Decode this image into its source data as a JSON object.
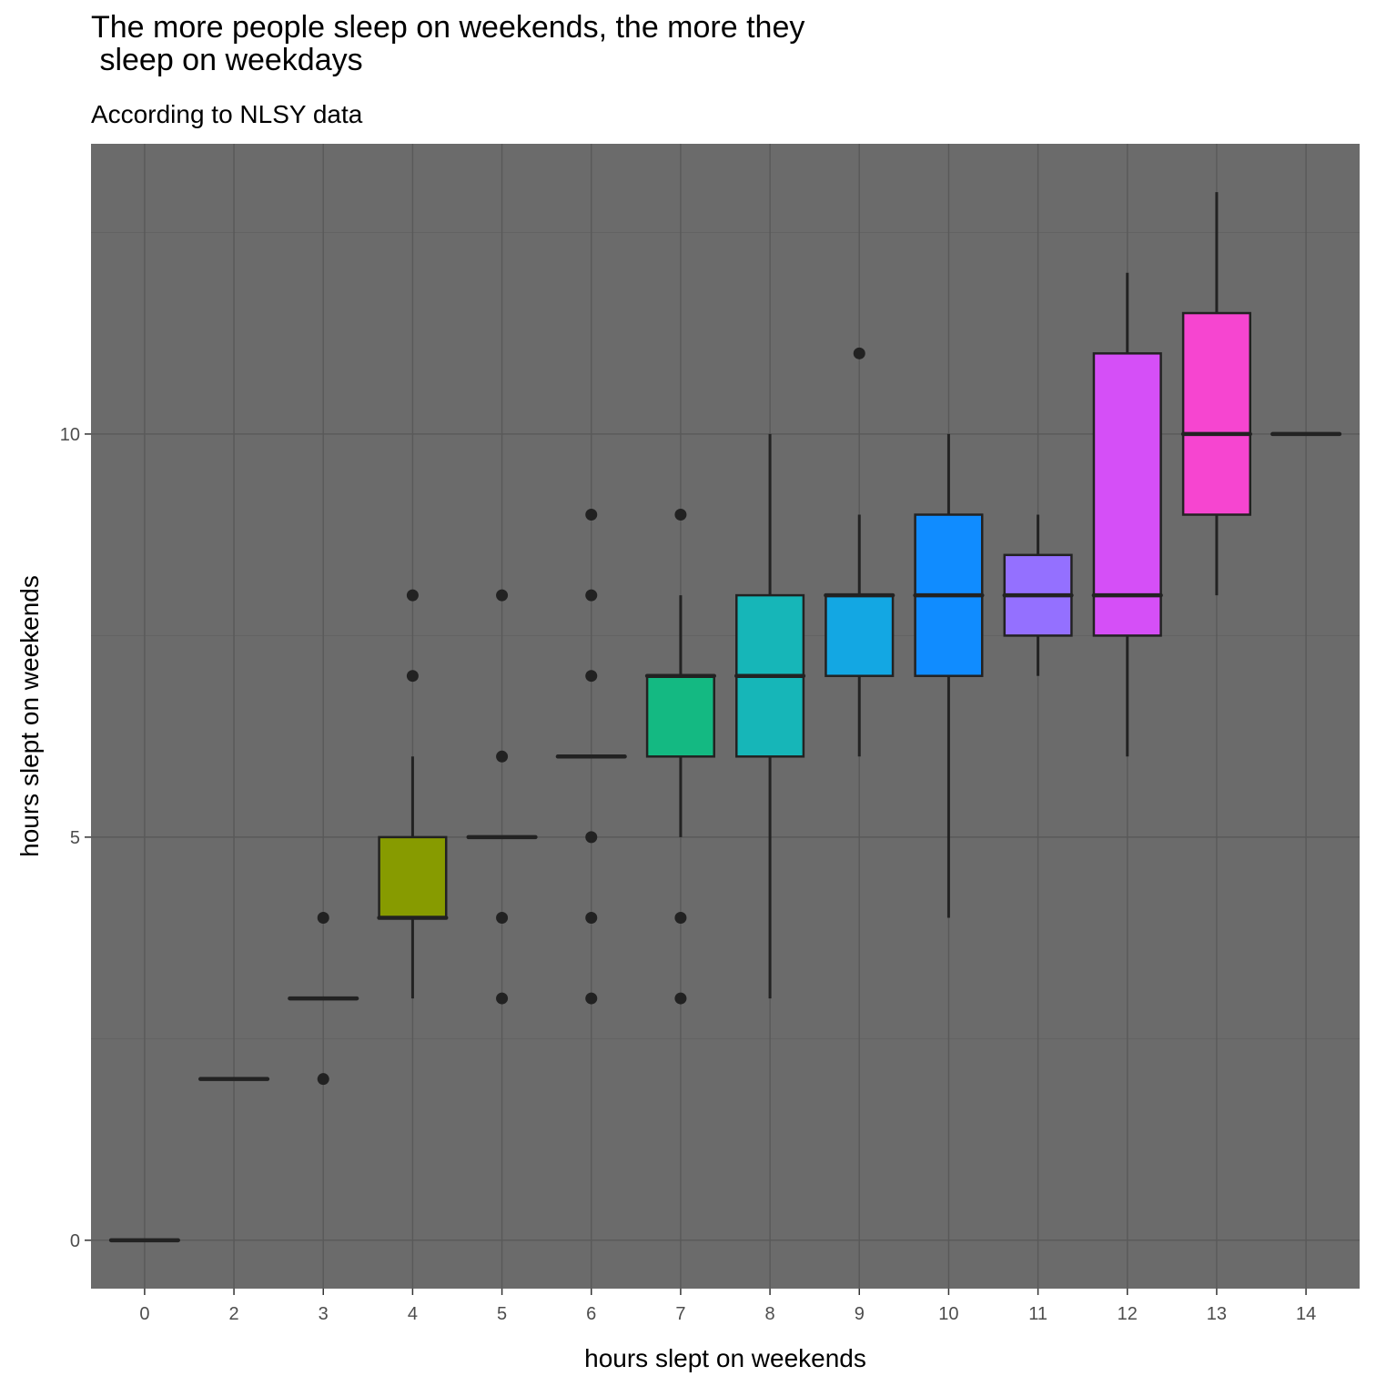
{
  "chart_data": {
    "type": "boxplot",
    "title": "The more people sleep on weekends, the more they\n sleep on weekdays",
    "subtitle": "According to NLSY data",
    "xlabel": "hours slept on weekends",
    "ylabel": "hours slept on weekends",
    "ylim": [
      -0.6,
      13.6
    ],
    "yticks": [
      0,
      5,
      10
    ],
    "grid": true,
    "legend": "none",
    "categories": [
      "0",
      "2",
      "3",
      "4",
      "5",
      "6",
      "7",
      "8",
      "9",
      "10",
      "11",
      "12",
      "13",
      "14"
    ],
    "boxes": [
      {
        "x": "0",
        "min": 0,
        "q1": 0,
        "median": 0,
        "q3": 0,
        "max": 0,
        "fill": "#ff6c91",
        "outliers": []
      },
      {
        "x": "2",
        "min": 2,
        "q1": 2,
        "median": 2,
        "q3": 2,
        "max": 2,
        "fill": "#ee8043",
        "outliers": []
      },
      {
        "x": "3",
        "min": 3,
        "q1": 3,
        "median": 3,
        "q3": 3,
        "max": 3,
        "fill": "#c49a00",
        "outliers": [
          2,
          4
        ]
      },
      {
        "x": "4",
        "min": 3,
        "q1": 4,
        "median": 4,
        "q3": 5,
        "max": 6,
        "fill": "#879b00",
        "outliers": [
          7,
          8
        ]
      },
      {
        "x": "5",
        "min": 5,
        "q1": 5,
        "median": 5,
        "q3": 5,
        "max": 5,
        "fill": "#1ea602",
        "outliers": [
          3,
          4,
          6,
          8
        ]
      },
      {
        "x": "6",
        "min": 6,
        "q1": 6,
        "median": 6,
        "q3": 6,
        "max": 6,
        "fill": "#00b275",
        "outliers": [
          3,
          4,
          5,
          7,
          8,
          9
        ]
      },
      {
        "x": "7",
        "min": 5,
        "q1": 6,
        "median": 7,
        "q3": 7,
        "max": 8,
        "fill": "#14b982",
        "outliers": [
          3,
          4,
          9
        ]
      },
      {
        "x": "8",
        "min": 3,
        "q1": 6,
        "median": 7,
        "q3": 8,
        "max": 10,
        "fill": "#16b6b8",
        "outliers": []
      },
      {
        "x": "9",
        "min": 6,
        "q1": 7,
        "median": 8,
        "q3": 8,
        "max": 9,
        "fill": "#13a7e3",
        "outliers": [
          11
        ]
      },
      {
        "x": "10",
        "min": 4,
        "q1": 7,
        "median": 8,
        "q3": 9,
        "max": 10,
        "fill": "#108cff",
        "outliers": []
      },
      {
        "x": "11",
        "min": 7,
        "q1": 7.5,
        "median": 8,
        "q3": 8.5,
        "max": 9,
        "fill": "#9470ff",
        "outliers": []
      },
      {
        "x": "12",
        "min": 6,
        "q1": 7.5,
        "median": 8,
        "q3": 11,
        "max": 12,
        "fill": "#d54ff7",
        "outliers": []
      },
      {
        "x": "13",
        "min": 8,
        "q1": 9,
        "median": 10,
        "q3": 11.5,
        "max": 13,
        "fill": "#f645d0",
        "outliers": []
      },
      {
        "x": "14",
        "min": 10,
        "q1": 10,
        "median": 10,
        "q3": 10,
        "max": 10,
        "fill": "#ff5fa8",
        "outliers": []
      }
    ],
    "colors": {
      "panel": "#6b6b6b",
      "grid_major": "#595959",
      "grid_minor": "#626262",
      "line": "#222222"
    }
  }
}
